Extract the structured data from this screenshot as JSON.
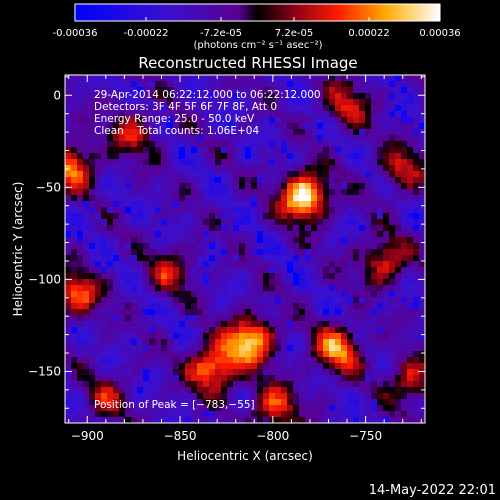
{
  "colorbar": {
    "tick_labels": [
      "-0.00036",
      "-0.00022",
      "-7.2e-05",
      "7.2e-05",
      "0.00022",
      "0.00036"
    ],
    "unit_label": "(photons cm⁻² s⁻¹ asec⁻²)",
    "range": [
      -0.00036,
      0.00036
    ]
  },
  "chart_data": {
    "type": "heatmap",
    "title": "Reconstructed RHESSI Image",
    "xlabel": "Heliocentric X (arcsec)",
    "ylabel": "Heliocentric Y (arcsec)",
    "xlim": [
      -912,
      -718
    ],
    "ylim": [
      -178,
      11
    ],
    "x_ticks": [
      -900,
      -850,
      -800,
      -750
    ],
    "y_ticks": [
      0,
      -50,
      -100,
      -150
    ],
    "x_tick_labels": [
      "−900",
      "−850",
      "−800",
      "−750"
    ],
    "y_tick_labels": [
      "0",
      "−50",
      "−100",
      "−150"
    ],
    "colormap": "blue-purple-red-yellow-white",
    "info_lines": [
      "29-Apr-2014 06:22:12.000 to 06:22:12.000",
      "Detectors: 3F 4F 5F 6F 7F 8F, Att 0",
      "Energy Range: 25.0 - 50.0 keV",
      "Clean    Total counts: 1.06E+04"
    ],
    "peak_label": "Position of Peak = [−783,−55]",
    "sources": [
      {
        "x": -783,
        "y": -55,
        "level": 1.0
      },
      {
        "x": -812,
        "y": -133,
        "level": 0.85
      },
      {
        "x": -832,
        "y": -148,
        "level": 0.8
      },
      {
        "x": -908,
        "y": -38,
        "level": 0.65
      },
      {
        "x": -906,
        "y": -108,
        "level": 0.6
      },
      {
        "x": -765,
        "y": -138,
        "level": 0.7
      },
      {
        "x": -740,
        "y": -90,
        "level": 0.55
      },
      {
        "x": -875,
        "y": -20,
        "level": 0.45
      },
      {
        "x": -760,
        "y": -5,
        "level": 0.45
      },
      {
        "x": -725,
        "y": -155,
        "level": 0.5
      },
      {
        "x": -855,
        "y": -95,
        "level": 0.4
      },
      {
        "x": -730,
        "y": -40,
        "level": 0.45
      },
      {
        "x": -800,
        "y": -170,
        "level": 0.55
      },
      {
        "x": -890,
        "y": -165,
        "level": 0.35
      }
    ]
  },
  "footer": {
    "date": "14-May-2022 22:01"
  }
}
